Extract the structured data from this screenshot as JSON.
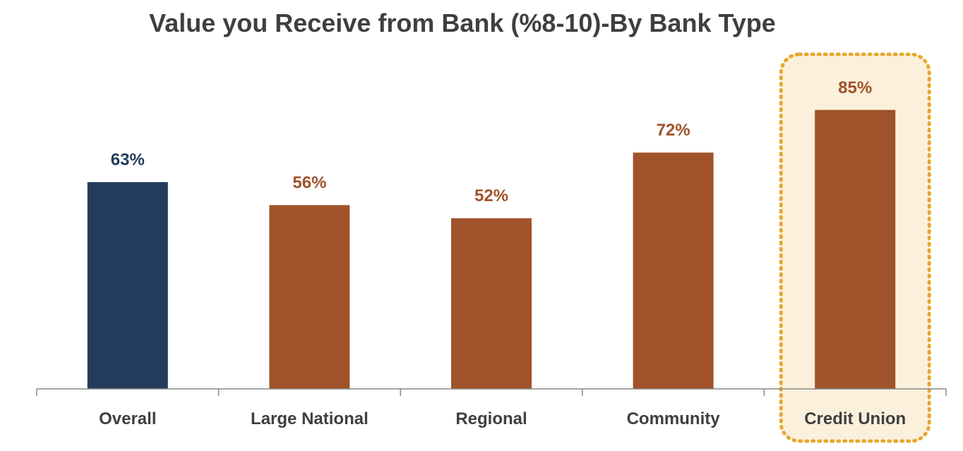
{
  "chart_data": {
    "type": "bar",
    "title": "Value you Receive from Bank (%8-10)-By Bank Type",
    "xlabel": "",
    "ylabel": "",
    "categories": [
      "Overall",
      "Large National",
      "Regional",
      "Community",
      "Credit Union"
    ],
    "values": [
      63,
      56,
      52,
      72,
      85
    ],
    "value_labels": [
      "63%",
      "56%",
      "52%",
      "72%",
      "85%"
    ],
    "unit": "%",
    "ylim": [
      0,
      100
    ],
    "grid": false,
    "legend": "none",
    "highlighted_category": "Credit Union"
  },
  "colors": {
    "overall_bar": "#243c5c",
    "bank_bar": "#a0532a",
    "overall_label": "#243c5c",
    "bank_label": "#a0532a",
    "highlight_fill": "#fbf0dc",
    "highlight_border": "#e6a82e",
    "axis": "#888888"
  }
}
